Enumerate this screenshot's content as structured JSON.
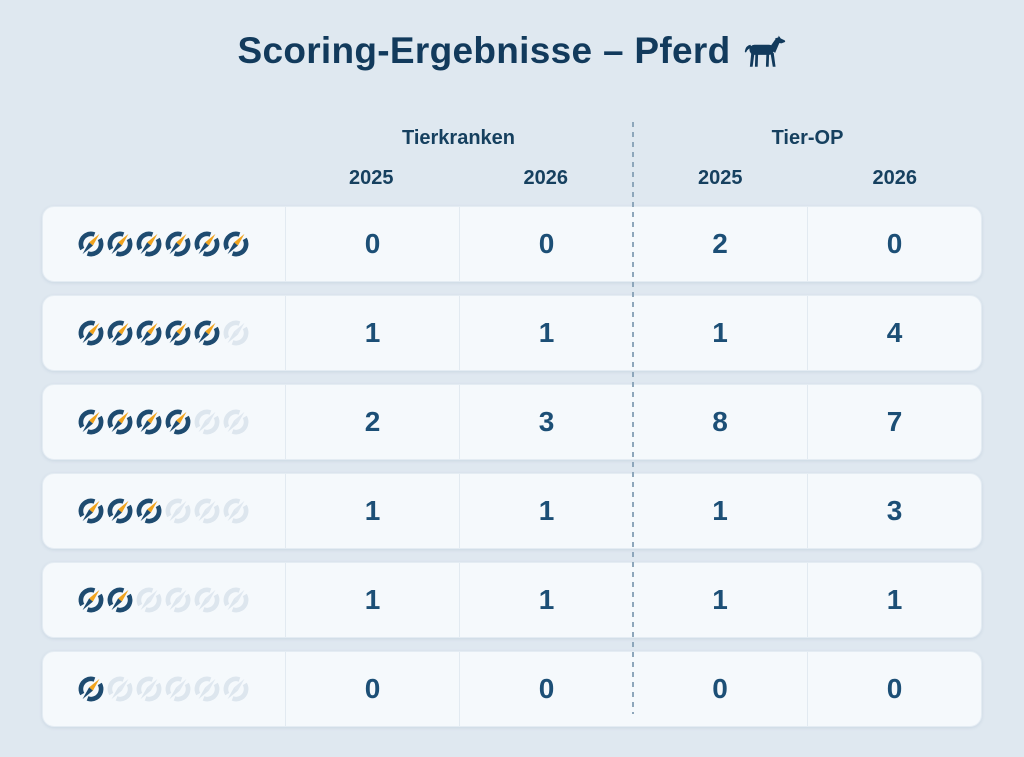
{
  "page": {
    "title": "Scoring-Ergebnisse – Pferd",
    "title_icon": "horse-icon"
  },
  "table": {
    "column_groups": [
      {
        "label": "Tierkranken",
        "years": [
          "2025",
          "2026"
        ]
      },
      {
        "label": "Tier-OP",
        "years": [
          "2025",
          "2026"
        ]
      }
    ],
    "score_icon": "compass-icon",
    "score_max": 6,
    "rows": [
      {
        "score": 6,
        "values": [
          "0",
          "0",
          "2",
          "0"
        ]
      },
      {
        "score": 5,
        "values": [
          "1",
          "1",
          "1",
          "4"
        ]
      },
      {
        "score": 4,
        "values": [
          "2",
          "3",
          "8",
          "7"
        ]
      },
      {
        "score": 3,
        "values": [
          "1",
          "1",
          "1",
          "3"
        ]
      },
      {
        "score": 2,
        "values": [
          "1",
          "1",
          "1",
          "1"
        ]
      },
      {
        "score": 1,
        "values": [
          "0",
          "0",
          "0",
          "0"
        ]
      }
    ]
  },
  "chart_data": {
    "type": "table",
    "title": "Scoring-Ergebnisse – Pferd",
    "column_groups": [
      "Tierkranken",
      "Tier-OP"
    ],
    "columns": [
      "Tierkranken 2025",
      "Tierkranken 2026",
      "Tier-OP 2025",
      "Tier-OP 2026"
    ],
    "row_scores": [
      6,
      5,
      4,
      3,
      2,
      1
    ],
    "score_max": 6,
    "rows": [
      [
        0,
        0,
        2,
        0
      ],
      [
        1,
        1,
        1,
        4
      ],
      [
        2,
        3,
        8,
        7
      ],
      [
        1,
        1,
        1,
        3
      ],
      [
        1,
        1,
        1,
        1
      ],
      [
        0,
        0,
        0,
        0
      ]
    ]
  },
  "colors": {
    "background": "#dfe8f0",
    "card": "#f5f9fc",
    "card_border": "#e4ecf3",
    "title_navy": "#123a5c",
    "header_navy": "#16405f",
    "value_navy": "#1c4f76",
    "icon_ring": "#1e4b70",
    "icon_gold": "#f0a31d",
    "icon_empty": "#dde6ee",
    "divider": "#8ea7bb"
  }
}
